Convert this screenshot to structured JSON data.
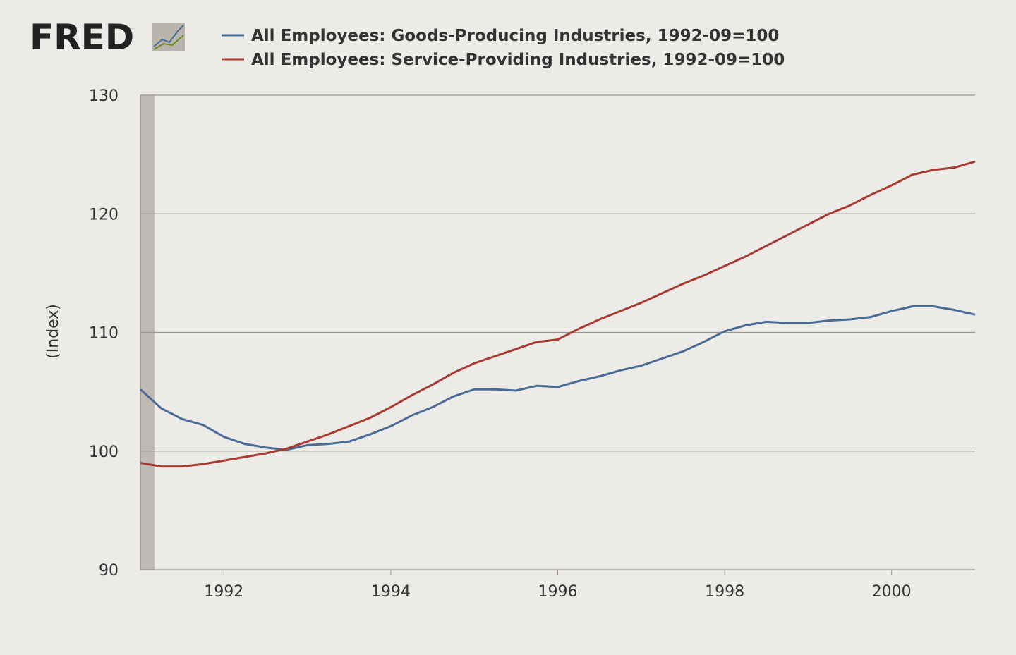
{
  "logo": "FRED",
  "chart_data": {
    "type": "line",
    "ylabel": "(Index)",
    "x": [
      1991.0,
      1991.25,
      1991.5,
      1991.75,
      1992.0,
      1992.25,
      1992.5,
      1992.75,
      1993.0,
      1993.25,
      1993.5,
      1993.75,
      1994.0,
      1994.25,
      1994.5,
      1994.75,
      1995.0,
      1995.25,
      1995.5,
      1995.75,
      1996.0,
      1996.25,
      1996.5,
      1996.75,
      1997.0,
      1997.25,
      1997.5,
      1997.75,
      1998.0,
      1998.25,
      1998.5,
      1998.75,
      1999.0,
      1999.25,
      1999.5,
      1999.75,
      2000.0,
      2000.25,
      2000.5,
      2000.75,
      2001.0
    ],
    "series": [
      {
        "name": "All Employees: Goods-Producing Industries, 1992-09=100",
        "color": "#4a6b96",
        "values": [
          105.2,
          103.6,
          102.7,
          102.2,
          101.2,
          100.6,
          100.3,
          100.1,
          100.5,
          100.6,
          100.8,
          101.4,
          102.1,
          103.0,
          103.7,
          104.6,
          105.2,
          105.2,
          105.1,
          105.5,
          105.4,
          105.9,
          106.3,
          106.8,
          107.2,
          107.8,
          108.4,
          109.2,
          110.1,
          110.6,
          110.9,
          110.8,
          110.8,
          111.0,
          111.1,
          111.3,
          111.8,
          112.2,
          112.2,
          111.9,
          111.5
        ]
      },
      {
        "name": "All Employees: Service-Providing Industries, 1992-09=100",
        "color": "#a93a32",
        "values": [
          99.0,
          98.7,
          98.7,
          98.9,
          99.2,
          99.5,
          99.8,
          100.2,
          100.8,
          101.4,
          102.1,
          102.8,
          103.7,
          104.7,
          105.6,
          106.6,
          107.4,
          108.0,
          108.6,
          109.2,
          109.4,
          110.3,
          111.1,
          111.8,
          112.5,
          113.3,
          114.1,
          114.8,
          115.6,
          116.4,
          117.3,
          118.2,
          119.1,
          120.0,
          120.7,
          121.6,
          122.4,
          123.3,
          123.7,
          123.9,
          124.4
        ]
      }
    ],
    "xlim": [
      1991,
      2001
    ],
    "xticks": [
      1992,
      1994,
      1996,
      1998,
      2000
    ],
    "ylim": [
      90,
      130
    ],
    "yticks": [
      90,
      100,
      110,
      120,
      130
    ],
    "recessions": [
      [
        1991.0,
        1991.17
      ]
    ],
    "grid": true
  }
}
